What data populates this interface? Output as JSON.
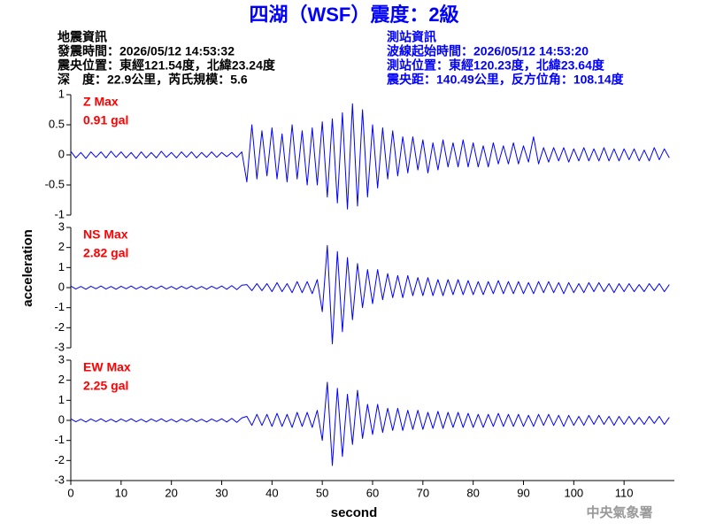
{
  "header": {
    "title": "四湖（WSF）震度：2級",
    "left": [
      "地震資訊",
      "發震時間：2026/05/12 14:53:32",
      "震央位置：東經121.54度，北緯23.24度",
      "深　度：22.9公里，芮氏規模：5.6"
    ],
    "right": [
      "測站資訊",
      "波線起始時間：2026/05/12 14:53:20",
      "測站位置：東經120.23度，北緯23.64度",
      "震央距：140.49公里，反方位角：108.14度"
    ]
  },
  "shared_axis": {
    "ylabel": "acceleration",
    "xlabel": "second"
  },
  "footer": "中央氣象署",
  "chart_data": [
    {
      "type": "line",
      "annotations": [
        "Z Max",
        "0.91 gal"
      ],
      "color": "#0000ff",
      "annotation_color": "#ff0000",
      "xlim": [
        0,
        120
      ],
      "ylim": [
        -1,
        1
      ],
      "yticks": [
        1,
        0.5,
        0,
        -0.5,
        -1
      ],
      "x": [
        0,
        1,
        2,
        3,
        4,
        5,
        6,
        7,
        8,
        9,
        10,
        11,
        12,
        13,
        14,
        15,
        16,
        17,
        18,
        19,
        20,
        21,
        22,
        23,
        24,
        25,
        26,
        27,
        28,
        29,
        30,
        31,
        32,
        33,
        34,
        35,
        36,
        37,
        38,
        39,
        40,
        41,
        42,
        43,
        44,
        45,
        46,
        47,
        48,
        49,
        50,
        51,
        52,
        53,
        54,
        55,
        56,
        57,
        58,
        59,
        60,
        61,
        62,
        63,
        64,
        65,
        66,
        67,
        68,
        69,
        70,
        71,
        72,
        73,
        74,
        75,
        76,
        77,
        78,
        79,
        80,
        81,
        82,
        83,
        84,
        85,
        86,
        87,
        88,
        89,
        90,
        91,
        92,
        93,
        94,
        95,
        96,
        97,
        98,
        99,
        100,
        101,
        102,
        103,
        104,
        105,
        106,
        107,
        108,
        109,
        110,
        111,
        112,
        113,
        114,
        115,
        116,
        117,
        118,
        119
      ],
      "values": [
        0.06,
        -0.05,
        0.04,
        -0.06,
        0.05,
        -0.04,
        0.05,
        -0.05,
        0.06,
        -0.04,
        0.05,
        -0.05,
        0.04,
        -0.06,
        0.05,
        -0.05,
        0.04,
        -0.05,
        0.06,
        -0.04,
        0.04,
        -0.05,
        0.05,
        -0.04,
        0.05,
        -0.05,
        0.04,
        -0.04,
        0.05,
        -0.04,
        0.04,
        -0.03,
        0.04,
        -0.04,
        0.05,
        -0.45,
        0.5,
        -0.4,
        0.4,
        -0.35,
        0.45,
        -0.4,
        0.35,
        -0.45,
        0.5,
        -0.4,
        0.4,
        -0.5,
        0.45,
        -0.5,
        0.55,
        -0.7,
        0.6,
        -0.8,
        0.7,
        -0.9,
        0.85,
        -0.85,
        0.75,
        -0.7,
        0.5,
        -0.55,
        0.45,
        -0.4,
        0.4,
        -0.35,
        0.3,
        -0.3,
        0.3,
        -0.25,
        0.25,
        -0.3,
        0.2,
        -0.25,
        0.25,
        -0.2,
        0.2,
        -0.2,
        0.25,
        -0.2,
        0.2,
        -0.2,
        0.15,
        -0.2,
        0.2,
        -0.15,
        0.15,
        -0.15,
        0.2,
        -0.15,
        0.15,
        -0.12,
        0.3,
        -0.15,
        0.12,
        -0.12,
        0.12,
        -0.1,
        0.12,
        -0.12,
        0.1,
        -0.1,
        0.12,
        -0.1,
        0.1,
        -0.1,
        0.12,
        -0.1,
        0.1,
        -0.1,
        0.1,
        -0.08,
        0.1,
        -0.1,
        0.08,
        -0.1,
        0.12,
        -0.08,
        0.1,
        -0.05
      ]
    },
    {
      "type": "line",
      "annotations": [
        "NS Max",
        "2.82 gal"
      ],
      "color": "#0000ff",
      "annotation_color": "#ff0000",
      "xlim": [
        0,
        120
      ],
      "ylim": [
        -3,
        3
      ],
      "yticks": [
        3,
        2,
        1,
        0,
        -1,
        -2,
        -3
      ],
      "x": [
        0,
        1,
        2,
        3,
        4,
        5,
        6,
        7,
        8,
        9,
        10,
        11,
        12,
        13,
        14,
        15,
        16,
        17,
        18,
        19,
        20,
        21,
        22,
        23,
        24,
        25,
        26,
        27,
        28,
        29,
        30,
        31,
        32,
        33,
        34,
        35,
        36,
        37,
        38,
        39,
        40,
        41,
        42,
        43,
        44,
        45,
        46,
        47,
        48,
        49,
        50,
        51,
        52,
        53,
        54,
        55,
        56,
        57,
        58,
        59,
        60,
        61,
        62,
        63,
        64,
        65,
        66,
        67,
        68,
        69,
        70,
        71,
        72,
        73,
        74,
        75,
        76,
        77,
        78,
        79,
        80,
        81,
        82,
        83,
        84,
        85,
        86,
        87,
        88,
        89,
        90,
        91,
        92,
        93,
        94,
        95,
        96,
        97,
        98,
        99,
        100,
        101,
        102,
        103,
        104,
        105,
        106,
        107,
        108,
        109,
        110,
        111,
        112,
        113,
        114,
        115,
        116,
        117,
        118,
        119
      ],
      "values": [
        0.08,
        -0.07,
        0.06,
        -0.08,
        0.07,
        -0.06,
        0.08,
        -0.07,
        0.06,
        -0.08,
        0.07,
        -0.06,
        0.08,
        -0.07,
        0.06,
        -0.08,
        0.07,
        -0.06,
        0.08,
        -0.07,
        0.06,
        -0.08,
        0.07,
        -0.06,
        0.08,
        -0.07,
        0.06,
        -0.08,
        0.07,
        -0.06,
        0.08,
        -0.08,
        0.1,
        -0.1,
        0.12,
        0.15,
        -0.15,
        0.2,
        -0.15,
        0.2,
        -0.2,
        0.25,
        -0.2,
        0.2,
        -0.25,
        0.3,
        -0.25,
        0.3,
        -0.3,
        0.4,
        -1.2,
        2.1,
        -2.8,
        1.8,
        -2.2,
        1.5,
        -1.6,
        1.2,
        -1.0,
        0.9,
        -0.8,
        0.9,
        -0.6,
        0.7,
        -0.5,
        0.6,
        -0.5,
        0.6,
        -0.4,
        0.5,
        -0.4,
        0.5,
        -0.4,
        0.4,
        -0.4,
        0.4,
        -0.35,
        0.4,
        -0.35,
        0.35,
        -0.35,
        0.3,
        -0.35,
        0.3,
        -0.3,
        0.35,
        -0.3,
        0.3,
        -0.3,
        0.3,
        -0.3,
        0.25,
        -0.3,
        0.3,
        -0.25,
        0.3,
        -0.25,
        0.25,
        -0.3,
        0.25,
        -0.25,
        0.2,
        -0.25,
        0.25,
        -0.2,
        0.25,
        -0.2,
        0.2,
        -0.25,
        0.2,
        -0.2,
        0.2,
        -0.2,
        0.15,
        -0.2,
        0.2,
        -0.15,
        0.2,
        -0.2,
        0.15
      ]
    },
    {
      "type": "line",
      "annotations": [
        "EW Max",
        "2.25 gal"
      ],
      "color": "#0000ff",
      "annotation_color": "#ff0000",
      "xlim": [
        0,
        120
      ],
      "ylim": [
        -3,
        3
      ],
      "yticks": [
        3,
        2,
        1,
        0,
        -1,
        -2,
        -3
      ],
      "xticks": [
        0,
        10,
        20,
        30,
        40,
        50,
        60,
        70,
        80,
        90,
        100,
        110
      ],
      "x": [
        0,
        1,
        2,
        3,
        4,
        5,
        6,
        7,
        8,
        9,
        10,
        11,
        12,
        13,
        14,
        15,
        16,
        17,
        18,
        19,
        20,
        21,
        22,
        23,
        24,
        25,
        26,
        27,
        28,
        29,
        30,
        31,
        32,
        33,
        34,
        35,
        36,
        37,
        38,
        39,
        40,
        41,
        42,
        43,
        44,
        45,
        46,
        47,
        48,
        49,
        50,
        51,
        52,
        53,
        54,
        55,
        56,
        57,
        58,
        59,
        60,
        61,
        62,
        63,
        64,
        65,
        66,
        67,
        68,
        69,
        70,
        71,
        72,
        73,
        74,
        75,
        76,
        77,
        78,
        79,
        80,
        81,
        82,
        83,
        84,
        85,
        86,
        87,
        88,
        89,
        90,
        91,
        92,
        93,
        94,
        95,
        96,
        97,
        98,
        99,
        100,
        101,
        102,
        103,
        104,
        105,
        106,
        107,
        108,
        109,
        110,
        111,
        112,
        113,
        114,
        115,
        116,
        117,
        118,
        119
      ],
      "values": [
        0.08,
        -0.07,
        0.06,
        -0.08,
        0.07,
        -0.06,
        0.08,
        -0.07,
        0.06,
        -0.08,
        0.07,
        -0.06,
        0.08,
        -0.07,
        0.06,
        -0.08,
        0.07,
        -0.06,
        0.08,
        -0.07,
        0.06,
        -0.08,
        0.07,
        -0.06,
        0.08,
        -0.07,
        0.06,
        -0.08,
        0.07,
        -0.06,
        0.08,
        -0.08,
        0.1,
        -0.1,
        0.12,
        0.2,
        -0.25,
        0.3,
        -0.25,
        0.3,
        -0.3,
        0.35,
        -0.3,
        0.3,
        -0.35,
        0.4,
        -0.3,
        0.4,
        -0.35,
        0.5,
        -1.0,
        1.9,
        -2.25,
        1.6,
        -1.8,
        1.3,
        -1.2,
        1.5,
        -0.9,
        0.8,
        -0.7,
        0.8,
        -0.6,
        0.6,
        -0.5,
        0.6,
        -0.5,
        0.5,
        -0.45,
        0.5,
        -0.45,
        0.4,
        -0.4,
        0.45,
        -0.4,
        0.4,
        -0.35,
        0.4,
        -0.35,
        0.35,
        -0.35,
        0.3,
        -0.35,
        0.3,
        -0.3,
        0.35,
        -0.3,
        0.3,
        -0.3,
        0.3,
        -0.3,
        0.25,
        -0.3,
        0.3,
        -0.25,
        0.3,
        -0.25,
        0.25,
        -0.3,
        0.25,
        -0.25,
        0.2,
        -0.25,
        0.25,
        -0.2,
        0.25,
        -0.2,
        0.2,
        -0.25,
        0.2,
        -0.2,
        0.2,
        -0.2,
        0.15,
        -0.2,
        0.2,
        -0.15,
        0.2,
        -0.2,
        0.15
      ]
    }
  ]
}
